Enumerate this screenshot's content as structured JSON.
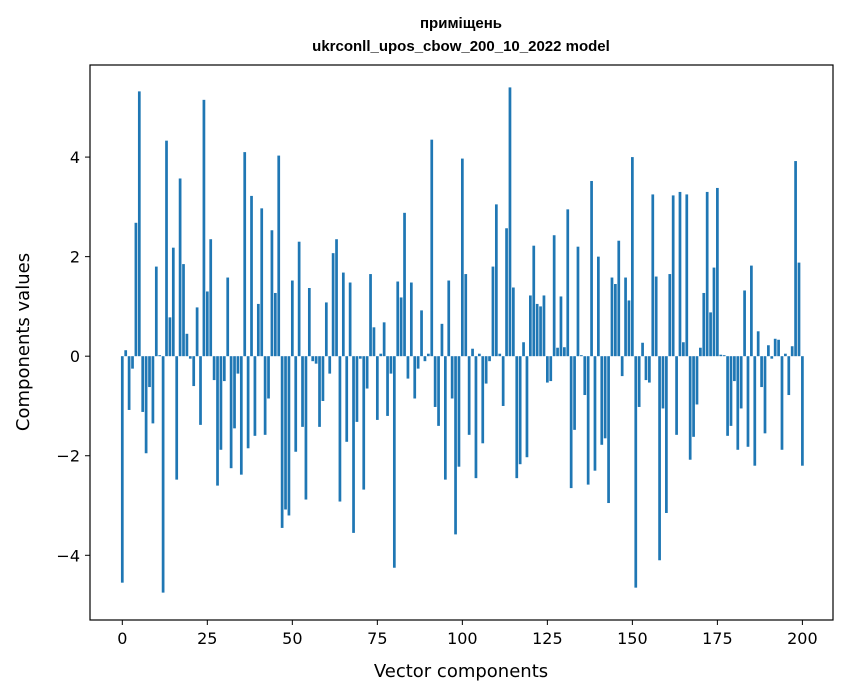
{
  "chart_data": {
    "type": "bar",
    "title": "приміщень",
    "subtitle": "ukrconll_upos_cbow_200_10_2022 model",
    "xlabel": "Vector components",
    "ylabel": "Components values",
    "xlim": [
      -9.5,
      209
    ],
    "ylim": [
      -5.3,
      5.85
    ],
    "xticks": [
      0,
      25,
      50,
      75,
      100,
      125,
      150,
      175,
      200
    ],
    "yticks": [
      -4,
      -2,
      0,
      2,
      4
    ],
    "ytick_labels": [
      "−4",
      "−2",
      "0",
      "2",
      "4"
    ],
    "bar_color": "#1f77b4",
    "grid": false,
    "values": [
      -4.55,
      0.12,
      -1.08,
      -0.25,
      2.68,
      5.32,
      -1.12,
      -1.95,
      -0.62,
      -1.35,
      1.8,
      0.02,
      -4.75,
      4.33,
      0.78,
      2.18,
      -2.48,
      3.57,
      1.85,
      0.45,
      -0.05,
      -0.6,
      0.98,
      -1.38,
      5.15,
      1.3,
      2.35,
      -0.48,
      -2.6,
      -1.88,
      -0.5,
      1.58,
      -2.25,
      -1.45,
      -0.35,
      -2.38,
      4.1,
      -1.85,
      3.22,
      -1.6,
      1.05,
      2.97,
      -1.58,
      -0.85,
      2.53,
      1.27,
      4.03,
      -3.45,
      -3.08,
      -3.2,
      1.52,
      -1.92,
      2.3,
      -1.42,
      -2.88,
      1.37,
      -0.1,
      -0.15,
      -1.42,
      -0.9,
      1.08,
      -0.35,
      2.07,
      2.35,
      -2.92,
      1.68,
      -1.72,
      1.48,
      -3.55,
      -1.32,
      -0.05,
      -2.68,
      -0.65,
      1.65,
      0.58,
      -1.28,
      0.05,
      0.68,
      -1.2,
      -0.35,
      -4.25,
      1.5,
      1.18,
      2.88,
      -0.45,
      1.48,
      -0.85,
      -0.25,
      0.92,
      -0.1,
      0.05,
      4.35,
      -1.02,
      -1.4,
      0.65,
      -2.48,
      1.52,
      -0.85,
      -3.58,
      -2.22,
      3.97,
      1.65,
      -1.58,
      0.15,
      -2.45,
      0.05,
      -1.75,
      -0.55,
      -0.1,
      1.8,
      3.05,
      0.05,
      -1.0,
      2.57,
      5.4,
      1.38,
      -2.45,
      -2.17,
      0.28,
      -2.03,
      1.22,
      2.22,
      1.05,
      1.0,
      1.22,
      -0.53,
      -0.5,
      2.43,
      0.17,
      1.2,
      0.18,
      2.95,
      -2.65,
      -1.48,
      2.2,
      0.02,
      -0.78,
      -2.58,
      3.52,
      -2.3,
      2.0,
      -1.78,
      -1.65,
      -2.95,
      1.58,
      1.45,
      2.32,
      -0.4,
      1.58,
      1.12,
      4.0,
      -4.65,
      -1.02,
      0.27,
      -0.48,
      -0.53,
      3.25,
      1.6,
      -4.1,
      -1.05,
      -3.15,
      1.65,
      3.23,
      -1.58,
      3.3,
      0.28,
      3.25,
      -2.08,
      -1.62,
      -0.97,
      0.17,
      1.27,
      3.3,
      0.88,
      1.78,
      3.38,
      0.03,
      0.02,
      -1.6,
      -1.4,
      -0.5,
      -1.88,
      -1.05,
      1.32,
      -1.82,
      1.82,
      -2.2,
      0.5,
      -0.62,
      -1.55,
      0.22,
      -0.05,
      0.35,
      0.33,
      -1.88,
      0.05,
      -0.78,
      0.2,
      3.92,
      1.88,
      -2.2
    ]
  }
}
